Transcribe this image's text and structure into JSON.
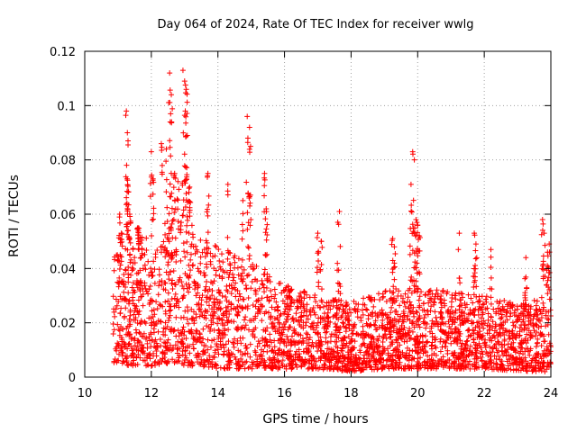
{
  "chart_data": {
    "type": "scatter",
    "title": "Day 064 of 2024, Rate Of TEC Index for receiver wwlg",
    "xlabel": "GPS time / hours",
    "ylabel": "ROTI / TECUs",
    "xlim": [
      10,
      24
    ],
    "ylim": [
      0,
      0.12
    ],
    "x_ticks": [
      "10",
      "12",
      "14",
      "16",
      "18",
      "20",
      "22",
      "24"
    ],
    "y_ticks": [
      "0",
      "0.02",
      "0.04",
      "0.06",
      "0.08",
      "0.1",
      "0.12"
    ],
    "grid": true,
    "marker": "+",
    "color": "#ff0000",
    "series": [
      {
        "name": "ROTI",
        "profile": [
          {
            "x": 10.85,
            "lo": 0.005,
            "hi": 0.045
          },
          {
            "x": 11.5,
            "lo": 0.004,
            "hi": 0.05
          },
          {
            "x": 12.0,
            "lo": 0.004,
            "hi": 0.055
          },
          {
            "x": 12.5,
            "lo": 0.005,
            "hi": 0.058
          },
          {
            "x": 13.0,
            "lo": 0.004,
            "hi": 0.06
          },
          {
            "x": 13.5,
            "lo": 0.004,
            "hi": 0.052
          },
          {
            "x": 14.0,
            "lo": 0.003,
            "hi": 0.048
          },
          {
            "x": 14.5,
            "lo": 0.003,
            "hi": 0.045
          },
          {
            "x": 15.0,
            "lo": 0.003,
            "hi": 0.043
          },
          {
            "x": 15.5,
            "lo": 0.003,
            "hi": 0.038
          },
          {
            "x": 16.0,
            "lo": 0.003,
            "hi": 0.034
          },
          {
            "x": 17.0,
            "lo": 0.003,
            "hi": 0.03
          },
          {
            "x": 18.0,
            "lo": 0.002,
            "hi": 0.028
          },
          {
            "x": 19.0,
            "lo": 0.003,
            "hi": 0.032
          },
          {
            "x": 20.0,
            "lo": 0.003,
            "hi": 0.034
          },
          {
            "x": 21.0,
            "lo": 0.003,
            "hi": 0.032
          },
          {
            "x": 22.0,
            "lo": 0.003,
            "hi": 0.03
          },
          {
            "x": 23.0,
            "lo": 0.002,
            "hi": 0.027
          },
          {
            "x": 24.0,
            "lo": 0.002,
            "hi": 0.03
          }
        ],
        "spikes": [
          {
            "x": 11.05,
            "y": 0.06
          },
          {
            "x": 11.1,
            "y": 0.053
          },
          {
            "x": 11.25,
            "y": 0.098
          },
          {
            "x": 11.28,
            "y": 0.09
          },
          {
            "x": 11.3,
            "y": 0.087
          },
          {
            "x": 11.27,
            "y": 0.073
          },
          {
            "x": 11.35,
            "y": 0.06
          },
          {
            "x": 11.6,
            "y": 0.055
          },
          {
            "x": 12.0,
            "y": 0.083
          },
          {
            "x": 12.05,
            "y": 0.073
          },
          {
            "x": 12.3,
            "y": 0.086
          },
          {
            "x": 12.45,
            "y": 0.084
          },
          {
            "x": 12.55,
            "y": 0.112
          },
          {
            "x": 12.6,
            "y": 0.104
          },
          {
            "x": 12.58,
            "y": 0.097
          },
          {
            "x": 12.7,
            "y": 0.075
          },
          {
            "x": 12.8,
            "y": 0.072
          },
          {
            "x": 12.95,
            "y": 0.113
          },
          {
            "x": 13.0,
            "y": 0.109
          },
          {
            "x": 13.05,
            "y": 0.106
          },
          {
            "x": 13.02,
            "y": 0.098
          },
          {
            "x": 13.08,
            "y": 0.089
          },
          {
            "x": 13.15,
            "y": 0.07
          },
          {
            "x": 13.7,
            "y": 0.075
          },
          {
            "x": 14.3,
            "y": 0.071
          },
          {
            "x": 14.75,
            "y": 0.065
          },
          {
            "x": 14.88,
            "y": 0.096
          },
          {
            "x": 14.95,
            "y": 0.092
          },
          {
            "x": 14.9,
            "y": 0.088
          },
          {
            "x": 14.98,
            "y": 0.085
          },
          {
            "x": 15.4,
            "y": 0.075
          },
          {
            "x": 15.45,
            "y": 0.062
          },
          {
            "x": 17.0,
            "y": 0.053
          },
          {
            "x": 17.1,
            "y": 0.05
          },
          {
            "x": 17.65,
            "y": 0.061
          },
          {
            "x": 17.6,
            "y": 0.057
          },
          {
            "x": 19.25,
            "y": 0.051
          },
          {
            "x": 19.3,
            "y": 0.048
          },
          {
            "x": 19.85,
            "y": 0.083
          },
          {
            "x": 19.9,
            "y": 0.08
          },
          {
            "x": 19.8,
            "y": 0.071
          },
          {
            "x": 19.95,
            "y": 0.058
          },
          {
            "x": 20.0,
            "y": 0.056
          },
          {
            "x": 20.05,
            "y": 0.052
          },
          {
            "x": 21.25,
            "y": 0.053
          },
          {
            "x": 21.7,
            "y": 0.053
          },
          {
            "x": 21.75,
            "y": 0.049
          },
          {
            "x": 22.2,
            "y": 0.047
          },
          {
            "x": 23.25,
            "y": 0.044
          },
          {
            "x": 23.75,
            "y": 0.058
          },
          {
            "x": 23.8,
            "y": 0.053
          },
          {
            "x": 23.95,
            "y": 0.049
          },
          {
            "x": 23.9,
            "y": 0.046
          }
        ]
      }
    ]
  }
}
